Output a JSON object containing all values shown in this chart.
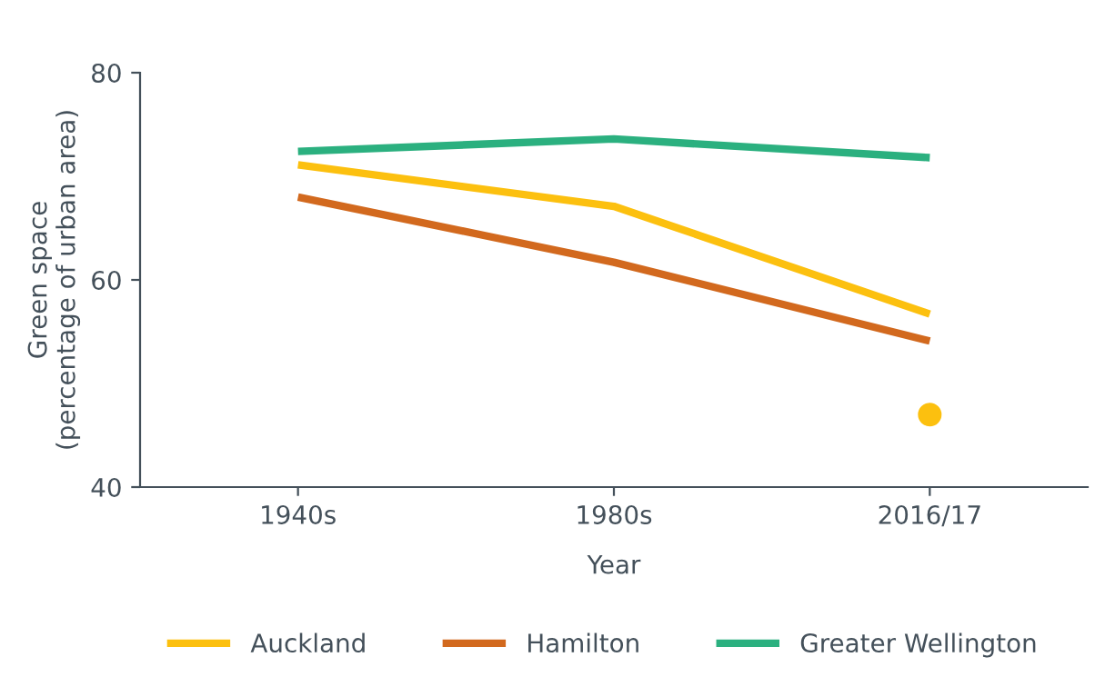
{
  "chart_data": {
    "type": "line",
    "xlabel": "Year",
    "ylabel": "Green space\n(percentage of urban area)",
    "categories": [
      "1940s",
      "1980s",
      "2016/17"
    ],
    "series": [
      {
        "name": "Auckland",
        "color": "#fcc00f",
        "values": [
          71.1,
          67.1,
          56.7
        ]
      },
      {
        "name": "Hamilton",
        "color": "#d2691e",
        "values": [
          68.0,
          61.7,
          54.1
        ]
      },
      {
        "name": "Greater Wellington",
        "color": "#2bb07f",
        "values": [
          72.4,
          73.6,
          71.8
        ]
      },
      {
        "type": "scatter",
        "color": "#fcc00f",
        "values": [
          null,
          null,
          47.0
        ]
      }
    ],
    "ylim": [
      40,
      80
    ],
    "yticks": [
      40,
      60,
      80
    ],
    "grid": false,
    "legend": "bottom"
  }
}
